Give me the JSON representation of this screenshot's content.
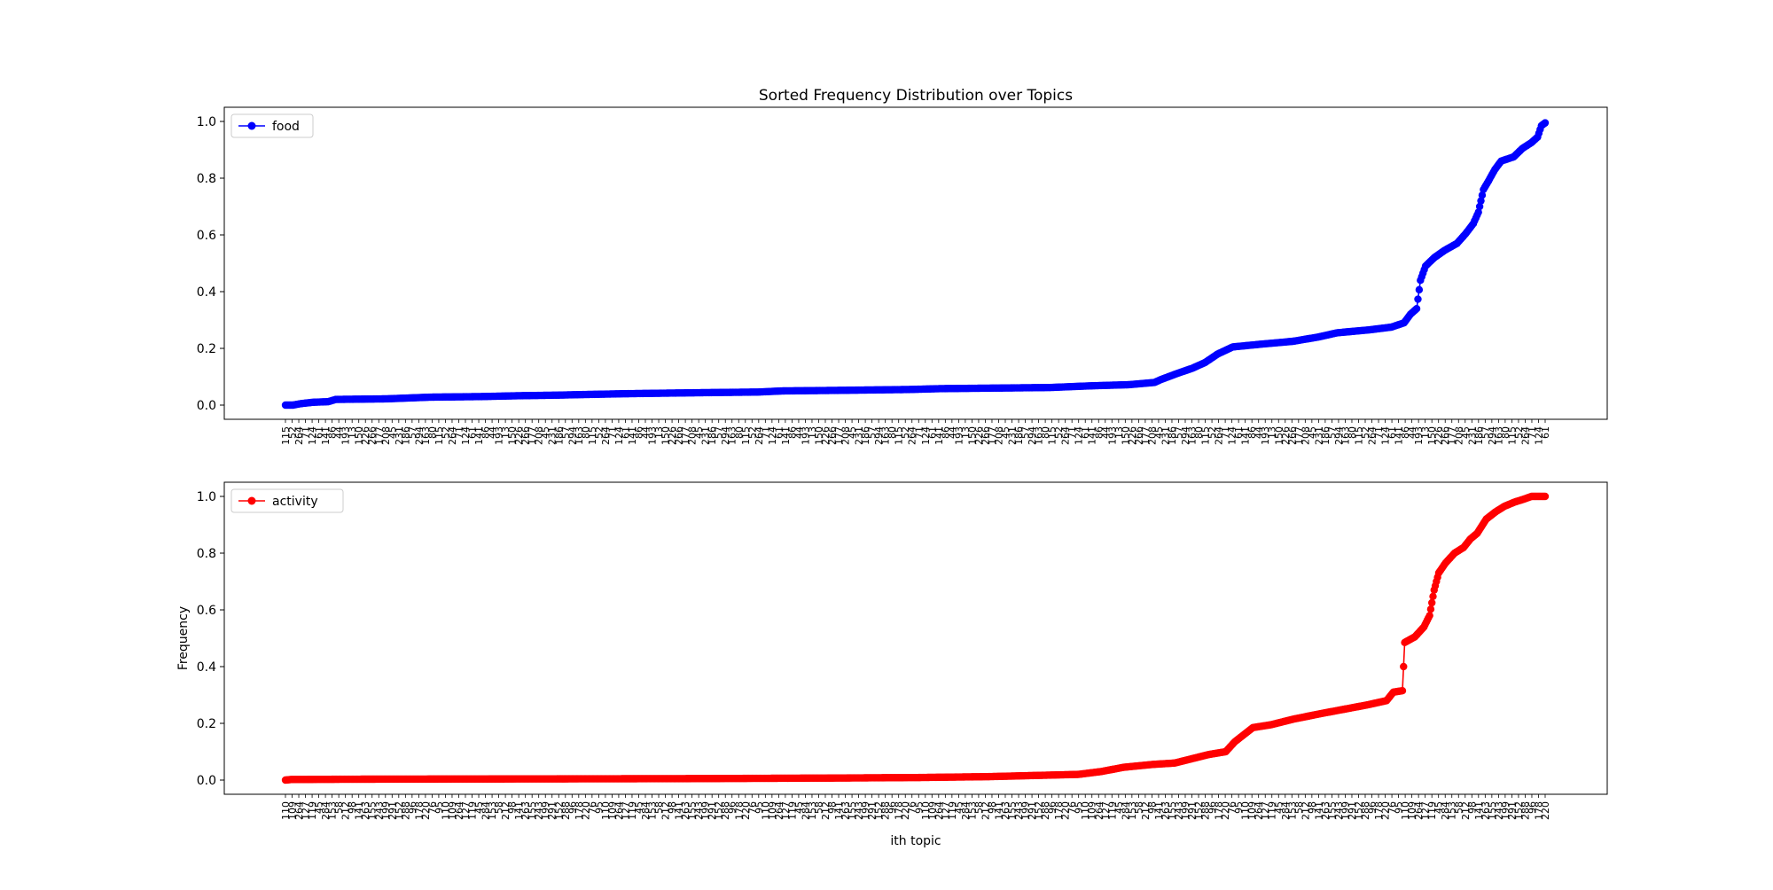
{
  "figure_title": "Sorted Frequency Distribution over Topics",
  "colors": {
    "food": "#0000ff",
    "activity": "#ff0000",
    "axis": "#000000",
    "legend_border": "#cccccc"
  },
  "chart_data": [
    {
      "type": "line",
      "title": "Sorted Frequency Distribution over Topics",
      "xlabel": "",
      "ylabel": "",
      "ylim": [
        -0.05,
        1.05
      ],
      "yticks": [
        "0.0",
        "0.2",
        "0.4",
        "0.6",
        "0.8",
        "1.0"
      ],
      "grid": false,
      "legend": {
        "placement": "upper-left",
        "entries": [
          "food"
        ]
      },
      "xticklabels": [
        "115",
        "52",
        "264",
        "71",
        "124",
        "61",
        "141",
        "86",
        "44",
        "193",
        "13",
        "150",
        "226",
        "266",
        "177",
        "208",
        "45",
        "231",
        "186",
        "57",
        "294",
        "163",
        "80"
      ],
      "series": [
        {
          "name": "food",
          "marker": "circle",
          "keypoints": [
            [
              0,
              0.0
            ],
            [
              6,
              0.0
            ],
            [
              12,
              0.005
            ],
            [
              22,
              0.01
            ],
            [
              34,
              0.012
            ],
            [
              40,
              0.02
            ],
            [
              80,
              0.022
            ],
            [
              115,
              0.028
            ],
            [
              155,
              0.03
            ],
            [
              185,
              0.033
            ],
            [
              215,
              0.035
            ],
            [
              235,
              0.037
            ],
            [
              268,
              0.04
            ],
            [
              300,
              0.042
            ],
            [
              335,
              0.044
            ],
            [
              375,
              0.046
            ],
            [
              395,
              0.05
            ],
            [
              440,
              0.052
            ],
            [
              495,
              0.055
            ],
            [
              520,
              0.058
            ],
            [
              565,
              0.06
            ],
            [
              607,
              0.062
            ],
            [
              640,
              0.068
            ],
            [
              670,
              0.072
            ],
            [
              690,
              0.08
            ],
            [
              695,
              0.09
            ],
            [
              707,
              0.11
            ],
            [
              720,
              0.13
            ],
            [
              730,
              0.15
            ],
            [
              740,
              0.18
            ],
            [
              752,
              0.205
            ],
            [
              775,
              0.215
            ],
            [
              800,
              0.225
            ],
            [
              820,
              0.24
            ],
            [
              835,
              0.255
            ],
            [
              860,
              0.265
            ],
            [
              878,
              0.275
            ],
            [
              888,
              0.29
            ],
            [
              893,
              0.32
            ],
            [
              898,
              0.34
            ],
            [
              901,
              0.44
            ],
            [
              905,
              0.49
            ],
            [
              912,
              0.52
            ],
            [
              920,
              0.545
            ],
            [
              930,
              0.57
            ],
            [
              937,
              0.605
            ],
            [
              943,
              0.64
            ],
            [
              947,
              0.68
            ],
            [
              951,
              0.76
            ],
            [
              955,
              0.79
            ],
            [
              960,
              0.83
            ],
            [
              965,
              0.86
            ],
            [
              975,
              0.875
            ],
            [
              982,
              0.905
            ],
            [
              989,
              0.925
            ],
            [
              994,
              0.945
            ],
            [
              997,
              0.985
            ],
            [
              1000,
              0.995
            ]
          ]
        }
      ]
    },
    {
      "type": "line",
      "title": "",
      "xlabel": "ith topic",
      "ylabel": "Frequency",
      "ylim": [
        -0.05,
        1.05
      ],
      "yticks": [
        "0.0",
        "0.2",
        "0.4",
        "0.6",
        "0.8",
        "1.0"
      ],
      "grid": false,
      "legend": {
        "placement": "upper-left",
        "entries": [
          "activity"
        ]
      },
      "xticklabels": [
        "110",
        "109",
        "264",
        "127",
        "119",
        "45",
        "284",
        "153",
        "58",
        "212",
        "98",
        "141",
        "263",
        "155",
        "243",
        "199",
        "291",
        "152",
        "288",
        "96",
        "178",
        "220",
        "76",
        "95"
      ],
      "series": [
        {
          "name": "activity",
          "marker": "circle",
          "keypoints": [
            [
              0,
              0.0
            ],
            [
              5,
              0.002
            ],
            [
              55,
              0.003
            ],
            [
              200,
              0.004
            ],
            [
              350,
              0.005
            ],
            [
              480,
              0.007
            ],
            [
              560,
              0.009
            ],
            [
              620,
              0.012
            ],
            [
              660,
              0.016
            ],
            [
              700,
              0.02
            ],
            [
              720,
              0.03
            ],
            [
              740,
              0.045
            ],
            [
              765,
              0.055
            ],
            [
              785,
              0.06
            ],
            [
              800,
              0.075
            ],
            [
              815,
              0.09
            ],
            [
              830,
              0.1
            ],
            [
              838,
              0.135
            ],
            [
              846,
              0.16
            ],
            [
              854,
              0.185
            ],
            [
              870,
              0.195
            ],
            [
              890,
              0.215
            ],
            [
              915,
              0.235
            ],
            [
              935,
              0.25
            ],
            [
              955,
              0.265
            ],
            [
              972,
              0.28
            ],
            [
              978,
              0.31
            ],
            [
              986,
              0.315
            ],
            [
              988,
              0.485
            ],
            [
              997,
              0.505
            ],
            [
              1005,
              0.54
            ],
            [
              1010,
              0.58
            ],
            [
              1014,
              0.67
            ],
            [
              1018,
              0.73
            ],
            [
              1024,
              0.765
            ],
            [
              1032,
              0.8
            ],
            [
              1040,
              0.82
            ],
            [
              1046,
              0.85
            ],
            [
              1052,
              0.87
            ],
            [
              1060,
              0.92
            ],
            [
              1068,
              0.945
            ],
            [
              1076,
              0.965
            ],
            [
              1085,
              0.98
            ],
            [
              1093,
              0.99
            ],
            [
              1100,
              1.0
            ],
            [
              1112,
              1.0
            ]
          ]
        }
      ]
    }
  ]
}
